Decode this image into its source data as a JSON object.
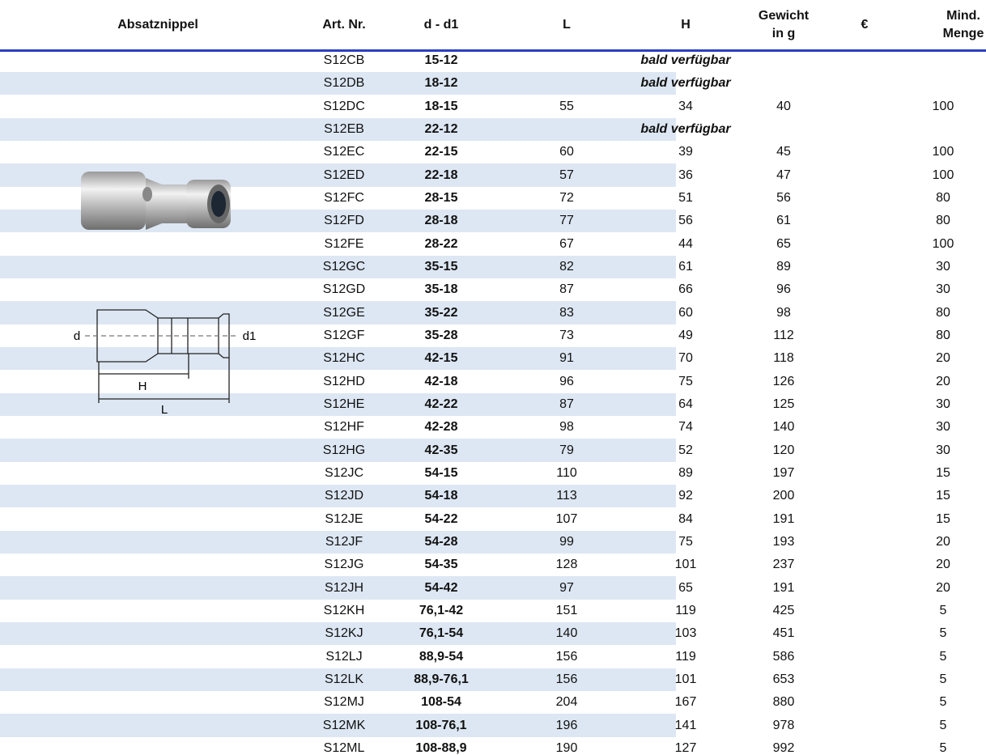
{
  "header": {
    "title": "Absatznippel",
    "columns": [
      [
        "Art. Nr."
      ],
      [
        "d - d1"
      ],
      [
        "L"
      ],
      [
        "H"
      ],
      [
        "Gewicht",
        "in g"
      ],
      [
        "€"
      ],
      [
        "Mind.",
        "Menge"
      ]
    ]
  },
  "diagram": {
    "labels": {
      "d": "d",
      "d1": "d1",
      "H": "H",
      "L": "L"
    }
  },
  "table": {
    "rows": [
      {
        "art": "S12CB",
        "size": "15-12",
        "note": "bald verfügbar"
      },
      {
        "art": "S12DB",
        "size": "18-12",
        "note": "bald verfügbar"
      },
      {
        "art": "S12DC",
        "size": "18-15",
        "L": 55,
        "H": 34,
        "weight": 40,
        "min": 100
      },
      {
        "art": "S12EB",
        "size": "22-12",
        "note": "bald verfügbar"
      },
      {
        "art": "S12EC",
        "size": "22-15",
        "L": 60,
        "H": 39,
        "weight": 45,
        "min": 100
      },
      {
        "art": "S12ED",
        "size": "22-18",
        "L": 57,
        "H": 36,
        "weight": 47,
        "min": 100
      },
      {
        "art": "S12FC",
        "size": "28-15",
        "L": 72,
        "H": 51,
        "weight": 56,
        "min": 80
      },
      {
        "art": "S12FD",
        "size": "28-18",
        "L": 77,
        "H": 56,
        "weight": 61,
        "min": 80
      },
      {
        "art": "S12FE",
        "size": "28-22",
        "L": 67,
        "H": 44,
        "weight": 65,
        "min": 100
      },
      {
        "art": "S12GC",
        "size": "35-15",
        "L": 82,
        "H": 61,
        "weight": 89,
        "min": 30
      },
      {
        "art": "S12GD",
        "size": "35-18",
        "L": 87,
        "H": 66,
        "weight": 96,
        "min": 30
      },
      {
        "art": "S12GE",
        "size": "35-22",
        "L": 83,
        "H": 60,
        "weight": 98,
        "min": 80
      },
      {
        "art": "S12GF",
        "size": "35-28",
        "L": 73,
        "H": 49,
        "weight": 112,
        "min": 80
      },
      {
        "art": "S12HC",
        "size": "42-15",
        "L": 91,
        "H": 70,
        "weight": 118,
        "min": 20
      },
      {
        "art": "S12HD",
        "size": "42-18",
        "L": 96,
        "H": 75,
        "weight": 126,
        "min": 20
      },
      {
        "art": "S12HE",
        "size": "42-22",
        "L": 87,
        "H": 64,
        "weight": 125,
        "min": 30
      },
      {
        "art": "S12HF",
        "size": "42-28",
        "L": 98,
        "H": 74,
        "weight": 140,
        "min": 30
      },
      {
        "art": "S12HG",
        "size": "42-35",
        "L": 79,
        "H": 52,
        "weight": 120,
        "min": 30
      },
      {
        "art": "S12JC",
        "size": "54-15",
        "L": 110,
        "H": 89,
        "weight": 197,
        "min": 15
      },
      {
        "art": "S12JD",
        "size": "54-18",
        "L": 113,
        "H": 92,
        "weight": 200,
        "min": 15
      },
      {
        "art": "S12JE",
        "size": "54-22",
        "L": 107,
        "H": 84,
        "weight": 191,
        "min": 15
      },
      {
        "art": "S12JF",
        "size": "54-28",
        "L": 99,
        "H": 75,
        "weight": 193,
        "min": 20
      },
      {
        "art": "S12JG",
        "size": "54-35",
        "L": 128,
        "H": 101,
        "weight": 237,
        "min": 20
      },
      {
        "art": "S12JH",
        "size": "54-42",
        "L": 97,
        "H": 65,
        "weight": 191,
        "min": 20
      },
      {
        "art": "S12KH",
        "size": "76,1-42",
        "L": 151,
        "H": 119,
        "weight": 425,
        "min": 5
      },
      {
        "art": "S12KJ",
        "size": "76,1-54",
        "L": 140,
        "H": 103,
        "weight": 451,
        "min": 5
      },
      {
        "art": "S12LJ",
        "size": "88,9-54",
        "L": 156,
        "H": 119,
        "weight": 586,
        "min": 5
      },
      {
        "art": "S12LK",
        "size": "88,9-76,1",
        "L": 156,
        "H": 101,
        "weight": 653,
        "min": 5
      },
      {
        "art": "S12MJ",
        "size": "108-54",
        "L": 204,
        "H": 167,
        "weight": 880,
        "min": 5
      },
      {
        "art": "S12MK",
        "size": "108-76,1",
        "L": 196,
        "H": 141,
        "weight": 978,
        "min": 5
      },
      {
        "art": "S12ML",
        "size": "108-88,9",
        "L": 190,
        "H": 127,
        "weight": 992,
        "min": 5
      }
    ]
  }
}
